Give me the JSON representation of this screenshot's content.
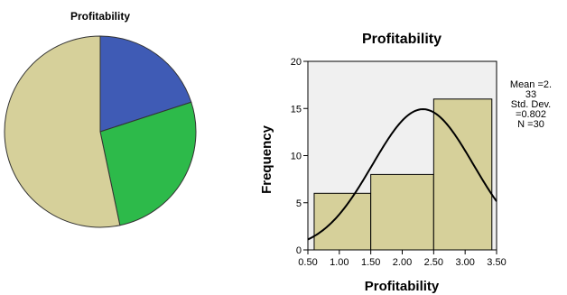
{
  "chart_data": [
    {
      "type": "pie",
      "title": "Profitability",
      "slices": [
        {
          "value": 20.0,
          "color": "#3f5bb5"
        },
        {
          "value": 26.7,
          "color": "#2dba4a"
        },
        {
          "value": 53.3,
          "color": "#d6d09a"
        }
      ]
    },
    {
      "type": "bar",
      "title": "Profitability",
      "xlabel": "Profitability",
      "ylabel": "Frequency",
      "xlim": [
        0.5,
        3.5
      ],
      "ylim": [
        0,
        20
      ],
      "x_ticks": [
        "0.50",
        "1.00",
        "1.50",
        "2.00",
        "2.50",
        "3.00",
        "3.50"
      ],
      "y_ticks": [
        "0",
        "5",
        "10",
        "15",
        "20"
      ],
      "bins": [
        {
          "from": 0.5,
          "to": 1.5,
          "count": 6
        },
        {
          "from": 1.5,
          "to": 2.5,
          "count": 8
        },
        {
          "from": 2.5,
          "to": 3.5,
          "count": 16
        }
      ],
      "normal_curve": {
        "mean": 2.33,
        "std": 0.802,
        "n": 30,
        "bin_width": 1.0
      },
      "stats_lines": [
        "Mean =2.",
        "33",
        "Std. Dev.",
        "=0.802",
        "N =30"
      ],
      "grid": false,
      "bar_color": "#d6d09a",
      "plot_background": "#f0f0f0"
    }
  ]
}
